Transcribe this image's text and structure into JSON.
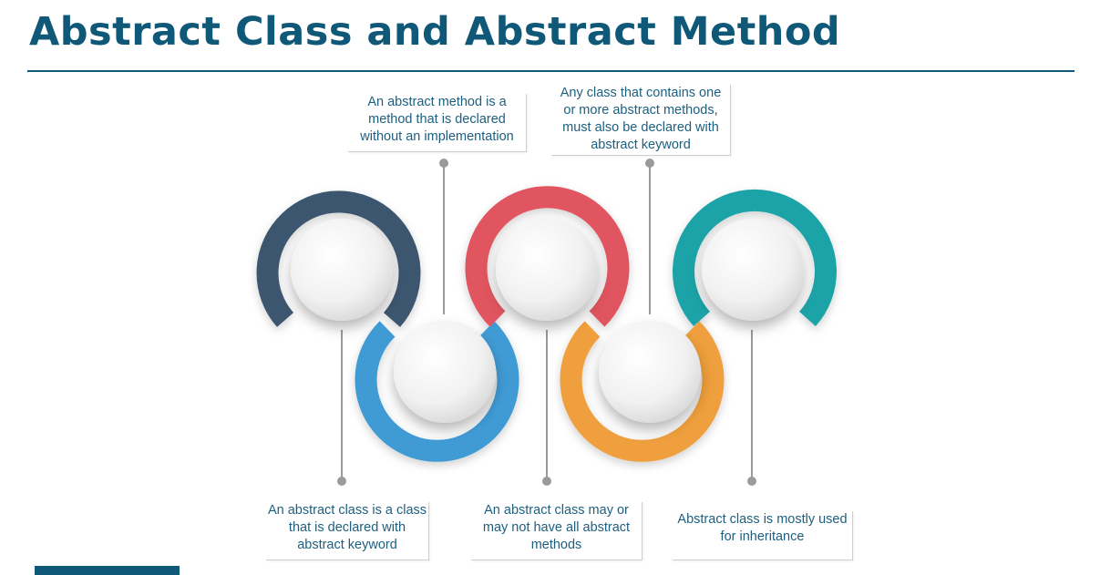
{
  "slide": {
    "title": "Abstract Class and Abstract Method"
  },
  "callouts": {
    "top_left": {
      "text": "An abstract method is a method that is declared without an implementation",
      "lines": [
        "An abstract method is a",
        "method that is declared",
        "without an implementation"
      ]
    },
    "top_right": {
      "text": "Any class that contains one or more abstract methods, must also be declared with abstract keyword",
      "lines": [
        "Any class that contains one",
        "or more abstract methods,",
        "must also be declared with",
        "abstract keyword"
      ]
    },
    "bottom_left": {
      "text": "An abstract class is a class that is declared with abstract keyword",
      "lines": [
        "An abstract class is a class",
        "that is declared with",
        "abstract keyword"
      ]
    },
    "bottom_middle": {
      "text": "An abstract class may or may not have all abstract methods",
      "lines": [
        "An abstract class may or",
        "may not have all abstract",
        "methods"
      ]
    },
    "bottom_right": {
      "text": "Abstract class is mostly used for inheritance",
      "lines": [
        "Abstract class is mostly used",
        "for inheritance"
      ]
    }
  },
  "colors": {
    "title": "#0f5877",
    "ring_navy": "#3d5670",
    "ring_blue": "#3f9bd5",
    "ring_red": "#e0545f",
    "ring_orange": "#ef9f3d",
    "ring_teal": "#1aa3a7",
    "connector": "#9a9a9a",
    "callout_text": "#1d5f7f"
  }
}
